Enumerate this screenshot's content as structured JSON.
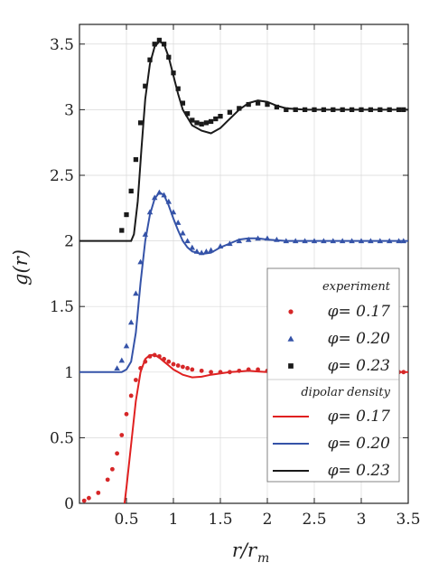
{
  "chart_data": {
    "type": "line",
    "xlabel": "r/r",
    "xlabel_sub": "m",
    "ylabel": "g(r)",
    "xlim": [
      0,
      3.5
    ],
    "ylim": [
      0,
      3.65
    ],
    "grid": true,
    "xticks": [
      "0.5",
      "1",
      "1.5",
      "2",
      "2.5",
      "3",
      "3.5"
    ],
    "xtick_values": [
      0.5,
      1,
      1.5,
      2,
      2.5,
      3,
      3.5
    ],
    "yticks": [
      "0",
      "0.5",
      "1",
      "1.5",
      "2",
      "2.5",
      "3",
      "3.5"
    ],
    "ytick_values": [
      0,
      0.5,
      1,
      1.5,
      2,
      2.5,
      3,
      3.5
    ],
    "legend": {
      "placement": "bottom-right",
      "experiment_heading": "experiment",
      "theory_heading": "dipolar density",
      "experiment_entries": [
        "φ= 0.17",
        "φ= 0.20",
        "φ= 0.23"
      ],
      "theory_entries": [
        "φ= 0.17",
        "φ= 0.20",
        "φ= 0.23"
      ]
    },
    "experiment_series": [
      {
        "name": "φ= 0.17",
        "marker": "circle",
        "color": "#d62728",
        "x": [
          0.05,
          0.1,
          0.2,
          0.3,
          0.35,
          0.4,
          0.45,
          0.5,
          0.55,
          0.6,
          0.65,
          0.7,
          0.75,
          0.8,
          0.85,
          0.9,
          0.95,
          1.0,
          1.05,
          1.1,
          1.15,
          1.2,
          1.3,
          1.4,
          1.5,
          1.6,
          1.7,
          1.8,
          1.9,
          2.0,
          2.1,
          2.2,
          2.3,
          2.4,
          2.5,
          2.6,
          2.7,
          2.8,
          2.9,
          3.0,
          3.1,
          3.2,
          3.3,
          3.4,
          3.45
        ],
        "y": [
          0.02,
          0.04,
          0.08,
          0.18,
          0.26,
          0.38,
          0.52,
          0.68,
          0.82,
          0.94,
          1.03,
          1.08,
          1.12,
          1.13,
          1.12,
          1.1,
          1.08,
          1.06,
          1.05,
          1.04,
          1.03,
          1.02,
          1.01,
          1.0,
          1.0,
          1.0,
          1.01,
          1.02,
          1.02,
          1.01,
          1.0,
          1.0,
          1.0,
          1.0,
          1.0,
          1.0,
          1.0,
          1.01,
          1.01,
          1.01,
          1.01,
          1.01,
          1.0,
          1.0,
          1.0
        ]
      },
      {
        "name": "φ= 0.20",
        "marker": "triangle",
        "color": "#3553a8",
        "x": [
          0.4,
          0.45,
          0.5,
          0.55,
          0.6,
          0.65,
          0.7,
          0.75,
          0.8,
          0.85,
          0.9,
          0.95,
          1.0,
          1.05,
          1.1,
          1.15,
          1.2,
          1.25,
          1.3,
          1.35,
          1.4,
          1.5,
          1.6,
          1.7,
          1.8,
          1.9,
          2.0,
          2.1,
          2.2,
          2.3,
          2.4,
          2.5,
          2.6,
          2.7,
          2.8,
          2.9,
          3.0,
          3.1,
          3.2,
          3.3,
          3.4,
          3.45
        ],
        "y": [
          1.03,
          1.09,
          1.2,
          1.38,
          1.6,
          1.84,
          2.05,
          2.22,
          2.33,
          2.37,
          2.35,
          2.3,
          2.22,
          2.14,
          2.06,
          2.0,
          1.95,
          1.92,
          1.91,
          1.92,
          1.93,
          1.96,
          1.98,
          2.0,
          2.01,
          2.02,
          2.02,
          2.01,
          2.0,
          2.0,
          2.0,
          2.0,
          2.0,
          2.0,
          2.0,
          2.0,
          2.0,
          2.0,
          2.0,
          2.0,
          2.0,
          2.0
        ]
      },
      {
        "name": "φ= 0.23",
        "marker": "square",
        "color": "#1a1a1a",
        "x": [
          0.45,
          0.5,
          0.55,
          0.6,
          0.65,
          0.7,
          0.75,
          0.8,
          0.85,
          0.9,
          0.95,
          1.0,
          1.05,
          1.1,
          1.15,
          1.2,
          1.25,
          1.3,
          1.35,
          1.4,
          1.45,
          1.5,
          1.6,
          1.7,
          1.8,
          1.9,
          2.0,
          2.1,
          2.2,
          2.3,
          2.4,
          2.5,
          2.6,
          2.7,
          2.8,
          2.9,
          3.0,
          3.1,
          3.2,
          3.3,
          3.4,
          3.45
        ],
        "y": [
          2.08,
          2.2,
          2.38,
          2.62,
          2.9,
          3.18,
          3.38,
          3.5,
          3.53,
          3.5,
          3.4,
          3.28,
          3.16,
          3.05,
          2.97,
          2.92,
          2.9,
          2.89,
          2.9,
          2.91,
          2.93,
          2.95,
          2.98,
          3.01,
          3.04,
          3.05,
          3.04,
          3.02,
          3.0,
          3.0,
          3.0,
          3.0,
          3.0,
          3.0,
          3.0,
          3.0,
          3.0,
          3.0,
          3.0,
          3.0,
          3.0,
          3.0
        ]
      }
    ],
    "theory_series": [
      {
        "name": "φ= 0.17",
        "color": "#e02020",
        "x": [
          0.48,
          0.5,
          0.55,
          0.6,
          0.65,
          0.7,
          0.75,
          0.8,
          0.85,
          0.9,
          0.95,
          1.0,
          1.05,
          1.1,
          1.15,
          1.2,
          1.3,
          1.4,
          1.5,
          1.6,
          1.7,
          1.8,
          1.9,
          2.0,
          2.2,
          2.5,
          3.0,
          3.5
        ],
        "y": [
          0,
          0.12,
          0.45,
          0.78,
          1.0,
          1.1,
          1.13,
          1.13,
          1.11,
          1.08,
          1.05,
          1.02,
          1.0,
          0.98,
          0.97,
          0.96,
          0.965,
          0.98,
          0.99,
          1.0,
          1.005,
          1.01,
          1.005,
          1.0,
          1.0,
          1.0,
          1.0,
          1.0
        ]
      },
      {
        "name": "φ= 0.20",
        "color": "#3553a8",
        "x": [
          0,
          0.45,
          0.5,
          0.55,
          0.6,
          0.65,
          0.7,
          0.75,
          0.8,
          0.85,
          0.9,
          0.95,
          1.0,
          1.05,
          1.1,
          1.15,
          1.2,
          1.3,
          1.4,
          1.5,
          1.6,
          1.7,
          1.8,
          1.9,
          2.0,
          2.2,
          2.5,
          3.0,
          3.5
        ],
        "y": [
          1.0,
          1.0,
          1.02,
          1.08,
          1.3,
          1.68,
          2.0,
          2.2,
          2.32,
          2.37,
          2.35,
          2.27,
          2.17,
          2.08,
          2.0,
          1.95,
          1.92,
          1.9,
          1.91,
          1.95,
          1.98,
          2.01,
          2.02,
          2.02,
          2.01,
          2.0,
          2.0,
          2.0,
          2.0
        ]
      },
      {
        "name": "φ= 0.23",
        "color": "#1a1a1a",
        "x": [
          0,
          0.55,
          0.58,
          0.62,
          0.66,
          0.7,
          0.75,
          0.8,
          0.85,
          0.9,
          0.95,
          1.0,
          1.05,
          1.1,
          1.2,
          1.3,
          1.4,
          1.5,
          1.6,
          1.7,
          1.8,
          1.9,
          2.0,
          2.1,
          2.2,
          2.4,
          2.7,
          3.0,
          3.5
        ],
        "y": [
          2.0,
          2.0,
          2.05,
          2.3,
          2.7,
          3.08,
          3.35,
          3.48,
          3.52,
          3.5,
          3.4,
          3.26,
          3.12,
          3.0,
          2.88,
          2.84,
          2.82,
          2.86,
          2.93,
          3.0,
          3.05,
          3.07,
          3.06,
          3.03,
          3.01,
          3.0,
          3.0,
          3.0,
          3.0
        ]
      }
    ]
  }
}
